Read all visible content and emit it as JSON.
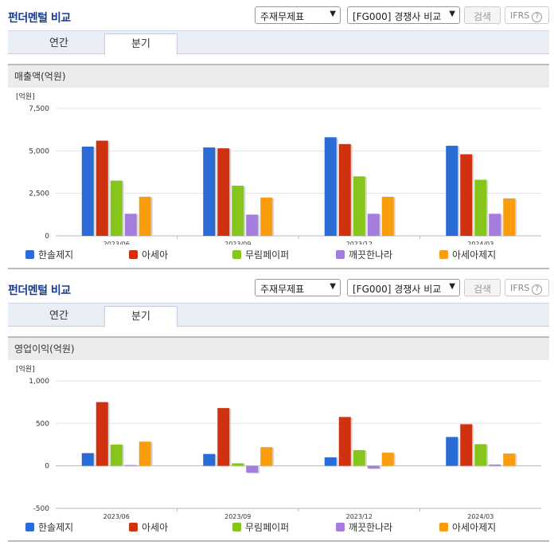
{
  "sections": [
    {
      "title": "펀더멘털 비교",
      "select1": "주재무제표",
      "select2": "[FG000] 경쟁사 비교",
      "search_label": "검색",
      "ifrs_label": "IFRS",
      "ifrs_help": "?",
      "tabs": [
        "연간",
        "분기"
      ],
      "active_tab": 1,
      "metric_title": "매출액(억원)",
      "unit_label": "[억원]"
    },
    {
      "title": "펀더멘털 비교",
      "select1": "주재무제표",
      "select2": "[FG000] 경쟁사 비교",
      "search_label": "검색",
      "ifrs_label": "IFRS",
      "ifrs_help": "?",
      "tabs": [
        "연간",
        "분기"
      ],
      "active_tab": 1,
      "metric_title": "영업이익(억원)",
      "unit_label": "[억원]"
    }
  ],
  "chart_data": [
    {
      "type": "bar",
      "title": "매출액(억원)",
      "ylabel": "[억원]",
      "categories": [
        "2023/06",
        "2023/09",
        "2023/12",
        "2024/03"
      ],
      "ylim": [
        0,
        7500
      ],
      "yticks": [
        0,
        2500,
        5000,
        7500
      ],
      "ytick_labels": [
        "0",
        "2,500",
        "5,000",
        "7,500"
      ],
      "grid": true,
      "legend_position": "bottom",
      "series": [
        {
          "name": "한솔제지",
          "color": "#2a6bd6",
          "values": [
            5250,
            5200,
            5800,
            5300
          ]
        },
        {
          "name": "아세아",
          "color": "#d0310e",
          "values": [
            5600,
            5150,
            5400,
            4800
          ]
        },
        {
          "name": "무림페이퍼",
          "color": "#86c51c",
          "values": [
            3250,
            2950,
            3500,
            3300
          ]
        },
        {
          "name": "깨끗한나라",
          "color": "#a57ddc",
          "values": [
            1300,
            1250,
            1300,
            1300
          ]
        },
        {
          "name": "아세아제지",
          "color": "#f99c0e",
          "values": [
            2300,
            2250,
            2300,
            2200
          ]
        }
      ]
    },
    {
      "type": "bar",
      "title": "영업이익(억원)",
      "ylabel": "[억원]",
      "categories": [
        "2023/06",
        "2023/09",
        "2023/12",
        "2024/03"
      ],
      "ylim": [
        -500,
        1000
      ],
      "yticks": [
        -500,
        0,
        500,
        1000
      ],
      "ytick_labels": [
        "-500",
        "0",
        "500",
        "1,000"
      ],
      "grid": true,
      "legend_position": "bottom",
      "series": [
        {
          "name": "한솔제지",
          "color": "#2a6bd6",
          "values": [
            150,
            140,
            100,
            340
          ]
        },
        {
          "name": "아세아",
          "color": "#d0310e",
          "values": [
            750,
            680,
            575,
            490
          ]
        },
        {
          "name": "무림페이퍼",
          "color": "#86c51c",
          "values": [
            250,
            30,
            185,
            255
          ]
        },
        {
          "name": "깨끗한나라",
          "color": "#a57ddc",
          "values": [
            10,
            -80,
            -30,
            15
          ]
        },
        {
          "name": "아세아제지",
          "color": "#f99c0e",
          "values": [
            285,
            220,
            155,
            145
          ]
        }
      ]
    }
  ]
}
